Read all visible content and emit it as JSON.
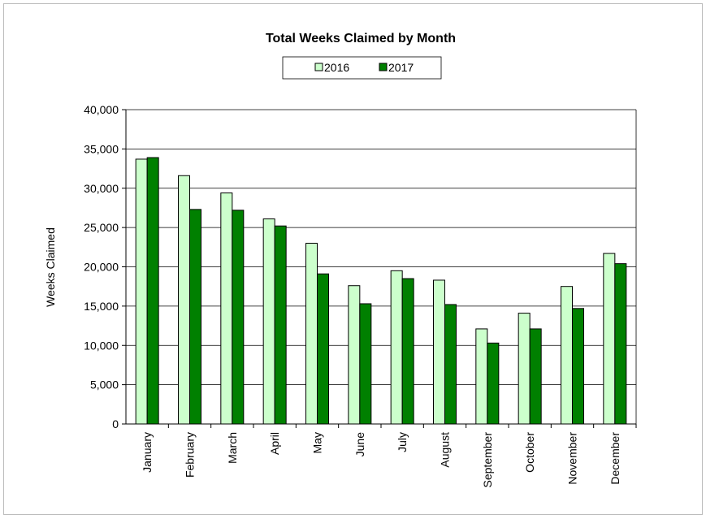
{
  "chart_data": {
    "type": "bar",
    "title": "Total Weeks Claimed by Month",
    "xlabel": "",
    "ylabel": "Weeks Claimed",
    "ylim": [
      0,
      40000
    ],
    "yticks": [
      0,
      5000,
      10000,
      15000,
      20000,
      25000,
      30000,
      35000,
      40000
    ],
    "ytick_labels": [
      "0",
      "5,000",
      "10,000",
      "15,000",
      "20,000",
      "25,000",
      "30,000",
      "35,000",
      "40,000"
    ],
    "grid": true,
    "legend_position": "top-center",
    "categories": [
      "January",
      "February",
      "March",
      "April",
      "May",
      "June",
      "July",
      "August",
      "September",
      "October",
      "November",
      "December"
    ],
    "series": [
      {
        "name": "2016",
        "color": "#ccffcc",
        "values": [
          33700,
          31600,
          29400,
          26100,
          23000,
          17600,
          19500,
          18300,
          12100,
          14100,
          17500,
          21700
        ]
      },
      {
        "name": "2017",
        "color": "#008000",
        "values": [
          33900,
          27300,
          27200,
          25200,
          19100,
          15300,
          18500,
          15200,
          10300,
          12100,
          14700,
          20400
        ]
      }
    ]
  }
}
